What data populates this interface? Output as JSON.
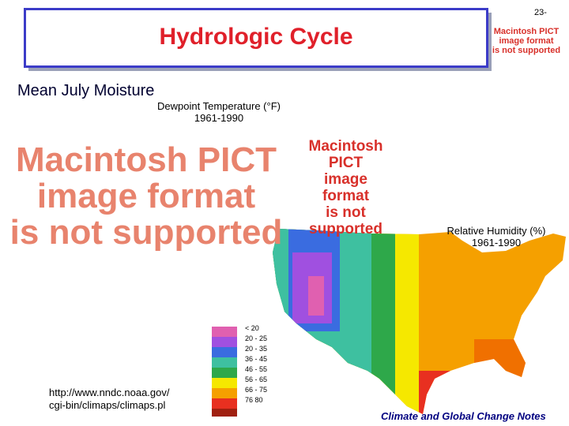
{
  "slide_number": "23-",
  "title": "Hydrologic Cycle",
  "subtitle": "Mean July  Moisture",
  "dewpoint": {
    "caption": "Dewpoint Temperature (°F)",
    "period": "1961-1990"
  },
  "humidity": {
    "caption": "Relative Humidity (%)",
    "period": "1961-1990"
  },
  "placeholder": {
    "lines": [
      "Macintosh PICT",
      "image format",
      "is not supported"
    ]
  },
  "legend": {
    "labels": [
      "< 20",
      "20 - 25",
      "20 - 35",
      "36 - 45",
      "46 - 55",
      "56 - 65",
      "66 - 75",
      "76  80"
    ]
  },
  "source": {
    "lines": [
      "http://www.nndc.noaa.gov/",
      "cgi-bin/climaps/climaps.pl"
    ]
  },
  "footer": "Climate and Global Change Notes"
}
